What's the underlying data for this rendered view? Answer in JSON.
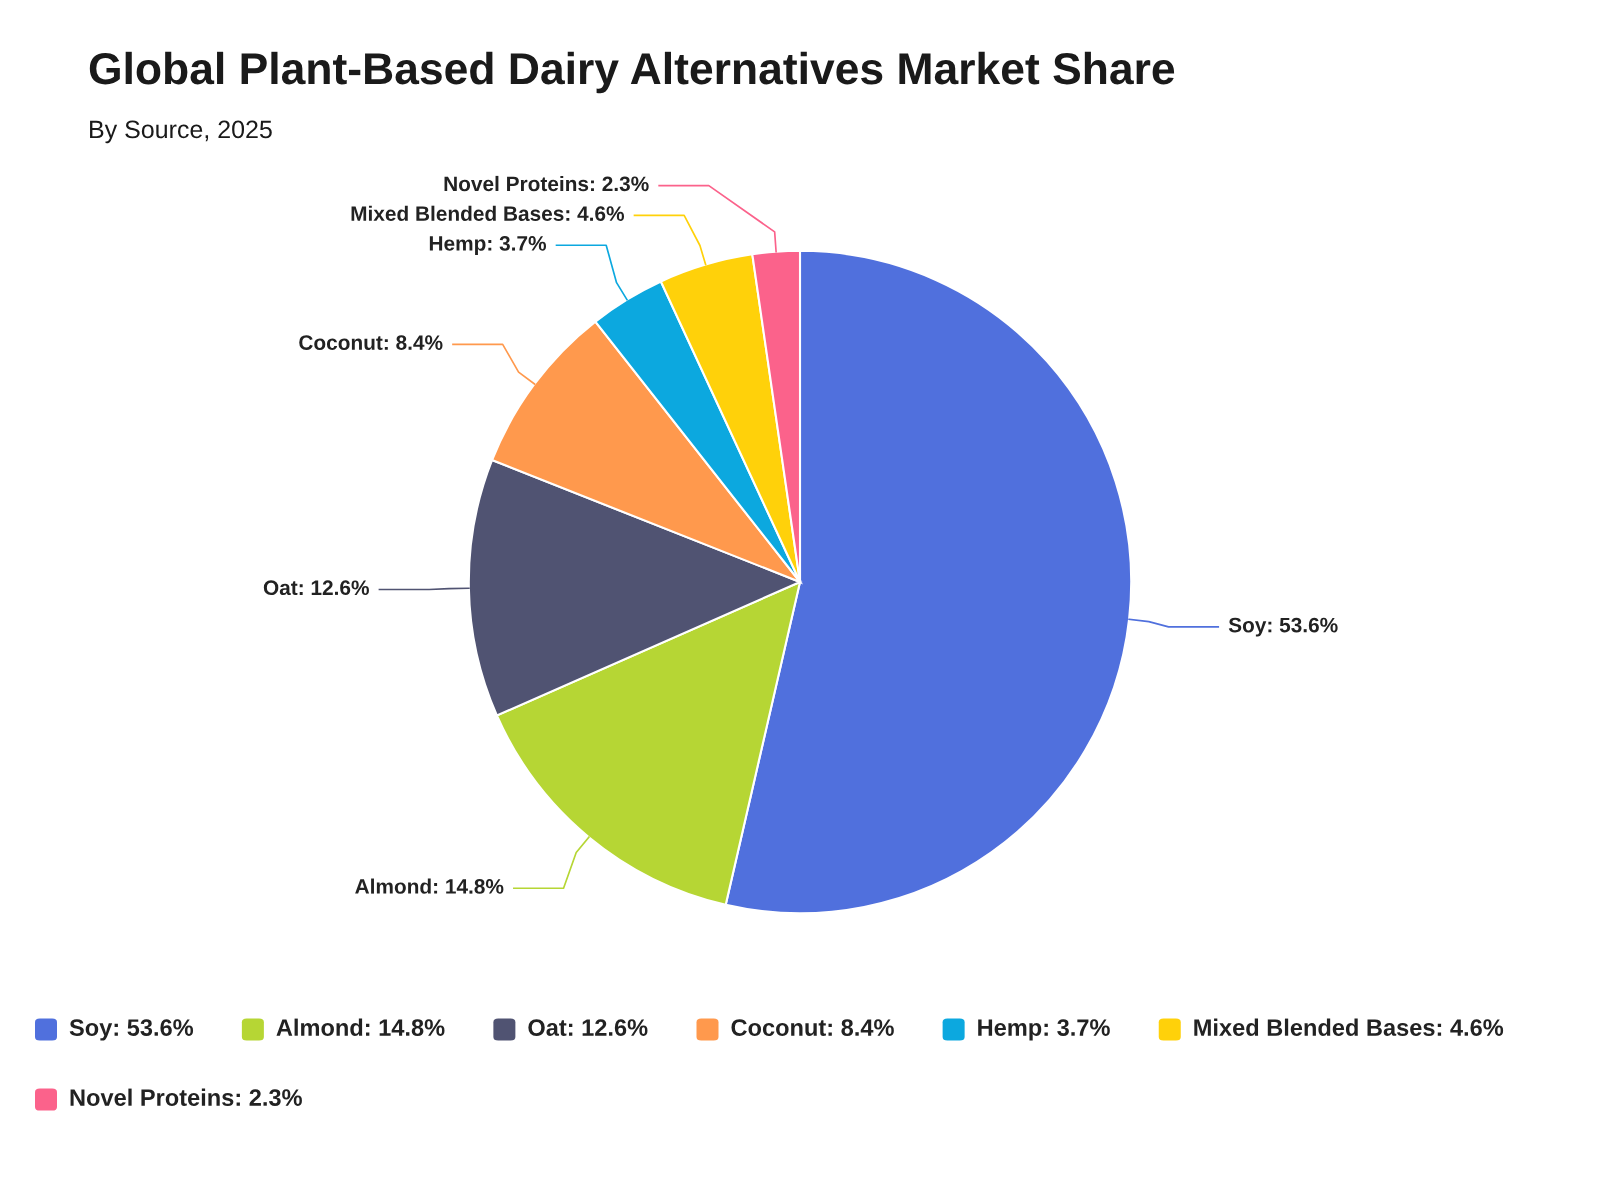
{
  "chart_data": {
    "type": "pie",
    "title": "Global Plant-Based Dairy Alternatives Market Share",
    "subtitle": "By Source, 2025",
    "categories": [
      "Soy: 53.6%",
      "Almond: 14.8%",
      "Oat: 12.6%",
      "Coconut: 8.4%",
      "Hemp: 3.7%",
      "Mixed Blended Bases: 4.6%",
      "Novel Proteins: 2.3%"
    ],
    "values": [
      53.6,
      14.8,
      12.6,
      8.4,
      3.7,
      4.6,
      2.3
    ],
    "colors": [
      "#5070dd",
      "#b6d634",
      "#505372",
      "#ff994d",
      "#0ca8df",
      "#ffd10a",
      "#fb628b"
    ],
    "legend": "bottom"
  }
}
